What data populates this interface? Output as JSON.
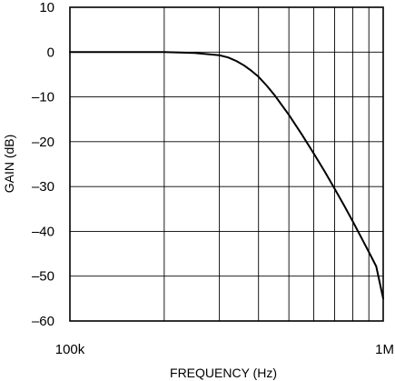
{
  "chart_data": {
    "type": "line",
    "title": "",
    "xlabel": "FREQUENCY (Hz)",
    "ylabel": "GAIN (dB)",
    "x_scale": "log",
    "xlim": [
      100000,
      1000000
    ],
    "ylim": [
      -60,
      10
    ],
    "grid": true,
    "legend": "none",
    "x_tick_labels": [
      {
        "value": 100000,
        "label": "100k"
      },
      {
        "value": 1000000,
        "label": "1M"
      }
    ],
    "y_ticks": [
      {
        "value": 10,
        "label": "10"
      },
      {
        "value": 0,
        "label": "0"
      },
      {
        "value": -10,
        "label": "–10"
      },
      {
        "value": -20,
        "label": "–20"
      },
      {
        "value": -30,
        "label": "–30"
      },
      {
        "value": -40,
        "label": "–40"
      },
      {
        "value": -50,
        "label": "–50"
      },
      {
        "value": -60,
        "label": "–60"
      }
    ],
    "x_minor_gridlines": [
      200000,
      300000,
      400000,
      500000,
      600000,
      700000,
      800000,
      900000
    ],
    "series": [
      {
        "color": "#000000",
        "x": [
          100000,
          200000,
          250000,
          300000,
          320000,
          340000,
          360000,
          380000,
          400000,
          425000,
          450000,
          500000,
          550000,
          600000,
          650000,
          700000,
          750000,
          800000,
          850000,
          900000,
          950000,
          1000000
        ],
        "y": [
          0,
          0,
          -0.2,
          -0.7,
          -1.2,
          -2,
          -3,
          -4.2,
          -5.5,
          -7.5,
          -9.6,
          -14,
          -18.4,
          -22.6,
          -26.6,
          -30.5,
          -34.2,
          -37.8,
          -41.3,
          -44.6,
          -47.8,
          -55
        ]
      }
    ]
  }
}
